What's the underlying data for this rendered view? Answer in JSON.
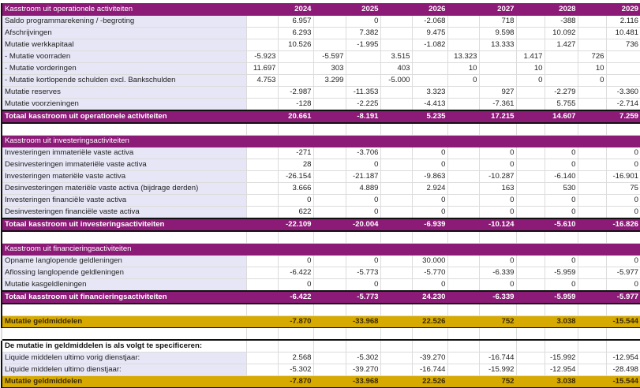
{
  "colors": {
    "purple": "#8c1b78",
    "gold": "#d6aa00",
    "label_bg": "#e6e6f6"
  },
  "rows": [
    {
      "type": "section",
      "label": "Kasstroom uit operationele activiteiten",
      "sub": [
        "",
        "",
        "",
        "",
        "",
        ""
      ],
      "main": [
        "2024",
        "2025",
        "2026",
        "2027",
        "2028",
        "2029"
      ]
    },
    {
      "type": "item",
      "label": "Saldo programmarekening / -begroting",
      "sub": [
        "",
        "",
        "",
        "",
        "",
        ""
      ],
      "main": [
        "6.957",
        "0",
        "-2.068",
        "718",
        "-388",
        "2.116"
      ]
    },
    {
      "type": "item",
      "label": "Afschrijvingen",
      "sub": [
        "",
        "",
        "",
        "",
        "",
        ""
      ],
      "main": [
        "6.293",
        "7.382",
        "9.475",
        "9.598",
        "10.092",
        "10.481"
      ]
    },
    {
      "type": "item",
      "label": "Mutatie werkkapitaal",
      "sub": [
        "",
        "",
        "",
        "",
        "",
        ""
      ],
      "main": [
        "10.526",
        "-1.995",
        "-1.082",
        "13.333",
        "1.427",
        "736"
      ]
    },
    {
      "type": "subitem",
      "label": "- Mutatie voorraden",
      "sub": [
        "-5.923",
        "-5.597",
        "3.515",
        "13.323",
        "1.417",
        "726"
      ],
      "main": [
        "",
        "",
        "",
        "",
        "",
        ""
      ]
    },
    {
      "type": "subitem",
      "label": "- Mutatie vorderingen",
      "sub": [
        "11.697",
        "303",
        "403",
        "10",
        "10",
        "10"
      ],
      "main": [
        "",
        "",
        "",
        "",
        "",
        ""
      ]
    },
    {
      "type": "subitem",
      "label": "- Mutatie kortlopende schulden excl. Bankschulden",
      "sub": [
        "4.753",
        "3.299",
        "-5.000",
        "0",
        "0",
        "0"
      ],
      "main": [
        "",
        "",
        "",
        "",
        "",
        ""
      ]
    },
    {
      "type": "item",
      "label": "Mutatie reserves",
      "sub": [
        "",
        "",
        "",
        "",
        "",
        ""
      ],
      "main": [
        "-2.987",
        "-11.353",
        "3.323",
        "927",
        "-2.279",
        "-3.360"
      ]
    },
    {
      "type": "item",
      "label": "Mutatie voorzieningen",
      "sub": [
        "",
        "",
        "",
        "",
        "",
        ""
      ],
      "main": [
        "-128",
        "-2.225",
        "-4.413",
        "-7.361",
        "5.755",
        "-2.714"
      ]
    },
    {
      "type": "total",
      "label": "Totaal kasstroom uit operationele activiteiten",
      "sub": [
        "",
        "",
        "",
        "",
        "",
        ""
      ],
      "main": [
        "20.661",
        "-8.191",
        "5.235",
        "17.215",
        "14.607",
        "7.259"
      ]
    },
    {
      "type": "blank",
      "label": "",
      "sub": [
        "",
        "",
        "",
        "",
        "",
        ""
      ],
      "main": [
        "",
        "",
        "",
        "",
        "",
        ""
      ]
    },
    {
      "type": "section",
      "label": "Kasstroom uit investeringsactiviteiten",
      "sub": [
        "",
        "",
        "",
        "",
        "",
        ""
      ],
      "main": [
        "",
        "",
        "",
        "",
        "",
        ""
      ]
    },
    {
      "type": "item",
      "label": "Investeringen immateriële vaste activa",
      "sub": [
        "",
        "",
        "",
        "",
        "",
        ""
      ],
      "main": [
        "-271",
        "-3.706",
        "0",
        "0",
        "0",
        "0"
      ]
    },
    {
      "type": "item",
      "label": "Desinvesteringen immateriële vaste activa",
      "sub": [
        "",
        "",
        "",
        "",
        "",
        ""
      ],
      "main": [
        "28",
        "0",
        "0",
        "0",
        "0",
        "0"
      ]
    },
    {
      "type": "item",
      "label": "Investeringen materiële vaste activa",
      "sub": [
        "",
        "",
        "",
        "",
        "",
        ""
      ],
      "main": [
        "-26.154",
        "-21.187",
        "-9.863",
        "-10.287",
        "-6.140",
        "-16.901"
      ]
    },
    {
      "type": "item",
      "label": "Desinvesteringen materiële vaste activa (bijdrage derden)",
      "sub": [
        "",
        "",
        "",
        "",
        "",
        ""
      ],
      "main": [
        "3.666",
        "4.889",
        "2.924",
        "163",
        "530",
        "75"
      ]
    },
    {
      "type": "item",
      "label": "Investeringen financiële vaste activa",
      "sub": [
        "",
        "",
        "",
        "",
        "",
        ""
      ],
      "main": [
        "0",
        "0",
        "0",
        "0",
        "0",
        "0"
      ]
    },
    {
      "type": "item",
      "label": "Desinvesteringen financiële vaste activa",
      "sub": [
        "",
        "",
        "",
        "",
        "",
        ""
      ],
      "main": [
        "622",
        "0",
        "0",
        "0",
        "0",
        "0"
      ]
    },
    {
      "type": "total",
      "label": "Totaal kasstroom uit investeringsactiviteiten",
      "sub": [
        "",
        "",
        "",
        "",
        "",
        ""
      ],
      "main": [
        "-22.109",
        "-20.004",
        "-6.939",
        "-10.124",
        "-5.610",
        "-16.826"
      ]
    },
    {
      "type": "blank",
      "label": "",
      "sub": [
        "",
        "",
        "",
        "",
        "",
        ""
      ],
      "main": [
        "",
        "",
        "",
        "",
        "",
        ""
      ]
    },
    {
      "type": "section",
      "label": "Kasstroom uit financieringsactiviteiten",
      "sub": [
        "",
        "",
        "",
        "",
        "",
        ""
      ],
      "main": [
        "",
        "",
        "",
        "",
        "",
        ""
      ]
    },
    {
      "type": "item",
      "label": "Opname langlopende geldleningen",
      "sub": [
        "",
        "",
        "",
        "",
        "",
        ""
      ],
      "main": [
        "0",
        "0",
        "30.000",
        "0",
        "0",
        "0"
      ]
    },
    {
      "type": "item",
      "label": "Aflossing langlopende geldleningen",
      "sub": [
        "",
        "",
        "",
        "",
        "",
        ""
      ],
      "main": [
        "-6.422",
        "-5.773",
        "-5.770",
        "-6.339",
        "-5.959",
        "-5.977"
      ]
    },
    {
      "type": "item",
      "label": "Mutatie kasgeldleningen",
      "sub": [
        "",
        "",
        "",
        "",
        "",
        ""
      ],
      "main": [
        "0",
        "0",
        "0",
        "0",
        "0",
        "0"
      ]
    },
    {
      "type": "total",
      "label": "Totaal kasstroom uit financieringsactiviteiten",
      "sub": [
        "",
        "",
        "",
        "",
        "",
        ""
      ],
      "main": [
        "-6.422",
        "-5.773",
        "24.230",
        "-6.339",
        "-5.959",
        "-5.977"
      ]
    },
    {
      "type": "blank",
      "label": "",
      "sub": [
        "",
        "",
        "",
        "",
        "",
        ""
      ],
      "main": [
        "",
        "",
        "",
        "",
        "",
        ""
      ]
    },
    {
      "type": "gold",
      "label": "Mutatie geldmiddelen",
      "sub": [
        "",
        "",
        "",
        "",
        "",
        ""
      ],
      "main": [
        "-7.870",
        "-33.968",
        "22.526",
        "752",
        "3.038",
        "-15.544"
      ]
    },
    {
      "type": "blank2",
      "label": "",
      "sub": [
        "",
        "",
        "",
        "",
        "",
        ""
      ],
      "main": [
        "",
        "",
        "",
        "",
        "",
        ""
      ]
    },
    {
      "type": "spechead",
      "label": "De mutatie in geldmiddelen is als volgt te specificeren:",
      "sub": [
        "",
        "",
        "",
        "",
        "",
        ""
      ],
      "main": [
        "",
        "",
        "",
        "",
        "",
        ""
      ]
    },
    {
      "type": "spec",
      "label": "Liquide middelen ultimo vorig dienstjaar:",
      "sub": [
        "",
        "",
        "",
        "",
        "",
        ""
      ],
      "main": [
        "2.568",
        "-5.302",
        "-39.270",
        "-16.744",
        "-15.992",
        "-12.954"
      ]
    },
    {
      "type": "spec",
      "label": "Liquide middelen ultimo dienstjaar:",
      "sub": [
        "",
        "",
        "",
        "",
        "",
        ""
      ],
      "main": [
        "-5.302",
        "-39.270",
        "-16.744",
        "-15.992",
        "-12.954",
        "-28.498"
      ]
    },
    {
      "type": "gold",
      "label": "Mutatie geldmiddelen",
      "sub": [
        "",
        "",
        "",
        "",
        "",
        ""
      ],
      "main": [
        "-7.870",
        "-33.968",
        "22.526",
        "752",
        "3.038",
        "-15.544"
      ]
    }
  ]
}
